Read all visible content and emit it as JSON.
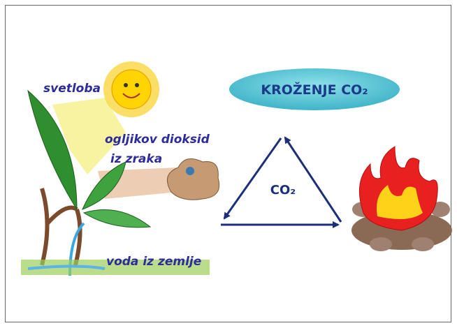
{
  "title": "KROŽENJE CO₂",
  "cycle_label": "CO₂",
  "labels": {
    "light": "svetloba",
    "co2_air_line1": "ogljikov dioksid",
    "co2_air_line2": "iz zraka",
    "water": "voda iz zemlje"
  }
}
